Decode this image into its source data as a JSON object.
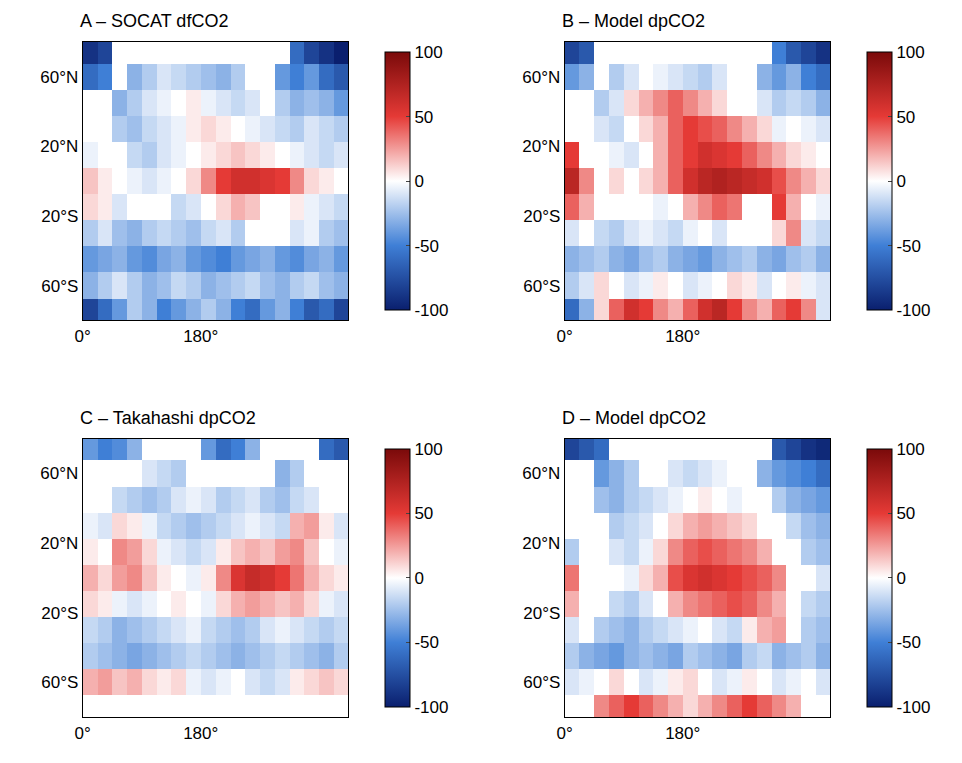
{
  "chart_data": [
    {
      "type": "heatmap",
      "title": "A – SOCAT dfCO2",
      "grid": false,
      "x": [
        11.25,
        33.75,
        56.25,
        78.75,
        101.25,
        123.75,
        146.25,
        168.75,
        191.25,
        213.75,
        236.25,
        258.75,
        281.25,
        303.75,
        326.25,
        348.75,
        371.25,
        393.75
      ],
      "y": [
        -75,
        -60,
        -45,
        -30,
        -15,
        0,
        15,
        30,
        45,
        60,
        75
      ],
      "xlim": [
        0,
        405
      ],
      "ylim": [
        -80,
        80
      ],
      "xticks": [
        {
          "value": 0,
          "label": "0°"
        },
        {
          "value": 180,
          "label": "180°"
        }
      ],
      "yticks": [
        {
          "value": -60,
          "label": "60°S"
        },
        {
          "value": -20,
          "label": "20°S"
        },
        {
          "value": 20,
          "label": "20°N"
        },
        {
          "value": 60,
          "label": "60°N"
        }
      ],
      "colorbar": {
        "range": [
          -100,
          100
        ],
        "ticks": [
          -100,
          -50,
          0,
          50,
          100
        ]
      },
      "z": [
        [
          -80,
          -60,
          -40,
          -20,
          -30,
          -50,
          -40,
          -30,
          -20,
          -30,
          -50,
          -60,
          -40,
          -30,
          -50,
          -70,
          -60,
          -80
        ],
        [
          -30,
          -20,
          -10,
          -20,
          -30,
          -25,
          -15,
          -20,
          -30,
          -25,
          -20,
          -15,
          -25,
          -30,
          -20,
          -15,
          -25,
          -30
        ],
        [
          -40,
          -35,
          -30,
          -40,
          -45,
          -35,
          -30,
          -40,
          -45,
          -50,
          -40,
          -35,
          -30,
          -40,
          -45,
          -35,
          -30,
          -40
        ],
        [
          -20,
          -10,
          -25,
          -30,
          -20,
          -15,
          -20,
          -25,
          -15,
          -10,
          -20,
          null,
          null,
          null,
          -10,
          -5,
          -20,
          -25
        ],
        [
          10,
          5,
          -10,
          null,
          null,
          null,
          -15,
          -10,
          0,
          10,
          20,
          15,
          null,
          null,
          5,
          -5,
          -10,
          -15
        ],
        [
          15,
          5,
          null,
          -5,
          -10,
          -5,
          0,
          10,
          30,
          50,
          60,
          60,
          55,
          50,
          30,
          10,
          5,
          0
        ],
        [
          -5,
          null,
          null,
          -15,
          -20,
          -10,
          -5,
          0,
          5,
          10,
          15,
          10,
          5,
          0,
          -5,
          -10,
          -15,
          -10
        ],
        [
          null,
          null,
          -20,
          -25,
          -15,
          -10,
          -5,
          5,
          10,
          5,
          0,
          -5,
          -10,
          -15,
          -20,
          -10,
          -15,
          -20
        ],
        [
          null,
          null,
          -30,
          -20,
          -10,
          -5,
          0,
          5,
          -5,
          -10,
          -15,
          -10,
          null,
          -20,
          -30,
          -25,
          -30,
          -40
        ],
        [
          -60,
          -50,
          null,
          -30,
          -20,
          -10,
          -15,
          -20,
          -25,
          -30,
          -20,
          null,
          null,
          -40,
          -50,
          -40,
          -60,
          -70
        ],
        [
          -90,
          -80,
          null,
          null,
          null,
          null,
          null,
          null,
          null,
          null,
          null,
          null,
          null,
          null,
          -60,
          -80,
          -90,
          -100
        ]
      ]
    },
    {
      "type": "heatmap",
      "title": "B – Model dpCO2",
      "grid": false,
      "x": [
        11.25,
        33.75,
        56.25,
        78.75,
        101.25,
        123.75,
        146.25,
        168.75,
        191.25,
        213.75,
        236.25,
        258.75,
        281.25,
        303.75,
        326.25,
        348.75,
        371.25,
        393.75
      ],
      "y": [
        -75,
        -60,
        -45,
        -30,
        -15,
        0,
        15,
        30,
        45,
        60,
        75
      ],
      "xlim": [
        0,
        405
      ],
      "ylim": [
        -80,
        80
      ],
      "xticks": [
        {
          "value": 0,
          "label": "0°"
        },
        {
          "value": 180,
          "label": "180°"
        }
      ],
      "yticks": [
        {
          "value": -60,
          "label": "60°S"
        },
        {
          "value": -20,
          "label": "20°S"
        },
        {
          "value": 20,
          "label": "20°N"
        },
        {
          "value": 60,
          "label": "60°N"
        }
      ],
      "colorbar": {
        "range": [
          -100,
          100
        ],
        "ticks": [
          -100,
          -50,
          0,
          50,
          100
        ]
      },
      "z": [
        [
          -60,
          -30,
          10,
          40,
          60,
          50,
          30,
          20,
          40,
          60,
          70,
          50,
          30,
          20,
          40,
          50,
          30,
          -10
        ],
        [
          -20,
          -10,
          10,
          0,
          -10,
          -5,
          5,
          0,
          -10,
          -5,
          0,
          10,
          5,
          -10,
          0,
          5,
          -5,
          -10
        ],
        [
          -30,
          -25,
          -20,
          -30,
          -35,
          -25,
          -20,
          -30,
          -35,
          -40,
          -30,
          -25,
          -20,
          -30,
          -35,
          -25,
          -20,
          -30
        ],
        [
          -10,
          0,
          -15,
          -20,
          -10,
          -5,
          -10,
          -15,
          -5,
          0,
          -10,
          null,
          null,
          null,
          10,
          30,
          -10,
          -15
        ],
        [
          40,
          20,
          0,
          null,
          null,
          null,
          -5,
          0,
          20,
          30,
          40,
          35,
          null,
          null,
          50,
          20,
          0,
          -5
        ],
        [
          70,
          30,
          null,
          10,
          0,
          10,
          20,
          40,
          60,
          70,
          75,
          70,
          65,
          60,
          45,
          30,
          20,
          10
        ],
        [
          50,
          null,
          null,
          -5,
          -10,
          0,
          20,
          40,
          50,
          60,
          55,
          50,
          40,
          30,
          20,
          10,
          5,
          0
        ],
        [
          null,
          null,
          -10,
          -15,
          0,
          10,
          20,
          40,
          50,
          45,
          40,
          30,
          20,
          10,
          -5,
          0,
          -5,
          -10
        ],
        [
          null,
          null,
          -20,
          -10,
          10,
          20,
          30,
          40,
          30,
          20,
          10,
          0,
          null,
          -10,
          -20,
          -15,
          -20,
          -30
        ],
        [
          -40,
          -30,
          null,
          -20,
          -10,
          0,
          -5,
          -10,
          -15,
          -20,
          -10,
          null,
          null,
          -30,
          -40,
          -30,
          -50,
          -60
        ],
        [
          -80,
          -70,
          null,
          null,
          null,
          null,
          null,
          null,
          null,
          null,
          null,
          null,
          null,
          null,
          -50,
          -70,
          -80,
          -90
        ]
      ]
    },
    {
      "type": "heatmap",
      "title": "C – Takahashi dpCO2",
      "grid": false,
      "x": [
        11.25,
        33.75,
        56.25,
        78.75,
        101.25,
        123.75,
        146.25,
        168.75,
        191.25,
        213.75,
        236.25,
        258.75,
        281.25,
        303.75,
        326.25,
        348.75,
        371.25,
        393.75
      ],
      "y": [
        -75,
        -60,
        -45,
        -30,
        -15,
        0,
        15,
        30,
        45,
        60,
        75
      ],
      "xlim": [
        0,
        405
      ],
      "ylim": [
        -80,
        80
      ],
      "xticks": [
        {
          "value": 0,
          "label": "0°"
        },
        {
          "value": 180,
          "label": "180°"
        }
      ],
      "yticks": [
        {
          "value": -60,
          "label": "60°S"
        },
        {
          "value": -20,
          "label": "20°S"
        },
        {
          "value": 20,
          "label": "20°N"
        },
        {
          "value": 60,
          "label": "60°N"
        }
      ],
      "colorbar": {
        "range": [
          -100,
          100
        ],
        "ticks": [
          -100,
          -50,
          0,
          50,
          100
        ]
      },
      "z": [
        [
          null,
          null,
          null,
          null,
          null,
          null,
          null,
          null,
          null,
          null,
          null,
          null,
          null,
          null,
          null,
          null,
          null,
          null
        ],
        [
          20,
          25,
          15,
          20,
          10,
          5,
          10,
          -5,
          -10,
          -5,
          0,
          -10,
          -15,
          -10,
          5,
          10,
          15,
          10
        ],
        [
          -20,
          -25,
          -30,
          -35,
          -30,
          -25,
          -20,
          -15,
          -20,
          -25,
          -30,
          -25,
          -20,
          -15,
          -20,
          -25,
          -30,
          -20
        ],
        [
          -15,
          -20,
          -30,
          -25,
          -20,
          -15,
          -10,
          -5,
          -15,
          -20,
          -25,
          -20,
          -10,
          -5,
          -10,
          -15,
          -20,
          -15
        ],
        [
          10,
          5,
          -5,
          -10,
          -5,
          0,
          5,
          0,
          -5,
          10,
          20,
          25,
          20,
          15,
          20,
          10,
          -5,
          -10
        ],
        [
          20,
          10,
          25,
          30,
          15,
          5,
          0,
          -5,
          5,
          30,
          55,
          65,
          60,
          50,
          35,
          20,
          10,
          5
        ],
        [
          5,
          0,
          30,
          25,
          10,
          -5,
          -10,
          -15,
          -10,
          5,
          15,
          20,
          15,
          25,
          30,
          15,
          0,
          -5
        ],
        [
          -5,
          -10,
          10,
          5,
          -5,
          -15,
          -20,
          -25,
          -20,
          -15,
          -10,
          -5,
          -10,
          -15,
          20,
          25,
          5,
          -10
        ],
        [
          null,
          null,
          -15,
          -20,
          -25,
          -20,
          -10,
          -5,
          -10,
          -20,
          -15,
          -10,
          -20,
          -25,
          -15,
          -10,
          null,
          null
        ],
        [
          null,
          null,
          null,
          null,
          -10,
          -15,
          -20,
          null,
          null,
          null,
          null,
          null,
          null,
          -30,
          -20,
          null,
          null,
          null
        ],
        [
          -40,
          -50,
          -45,
          -30,
          null,
          null,
          null,
          null,
          -40,
          -60,
          -50,
          -30,
          null,
          null,
          null,
          null,
          -60,
          -70
        ]
      ]
    },
    {
      "type": "heatmap",
      "title": "D – Model dpCO2",
      "grid": false,
      "x": [
        11.25,
        33.75,
        56.25,
        78.75,
        101.25,
        123.75,
        146.25,
        168.75,
        191.25,
        213.75,
        236.25,
        258.75,
        281.25,
        303.75,
        326.25,
        348.75,
        371.25,
        393.75
      ],
      "y": [
        -75,
        -60,
        -45,
        -30,
        -15,
        0,
        15,
        30,
        45,
        60,
        75
      ],
      "xlim": [
        0,
        405
      ],
      "ylim": [
        -80,
        80
      ],
      "xticks": [
        {
          "value": 0,
          "label": "0°"
        },
        {
          "value": 180,
          "label": "180°"
        }
      ],
      "yticks": [
        {
          "value": -60,
          "label": "60°S"
        },
        {
          "value": -20,
          "label": "20°S"
        },
        {
          "value": 20,
          "label": "20°N"
        },
        {
          "value": 60,
          "label": "60°N"
        }
      ],
      "colorbar": {
        "range": [
          -100,
          100
        ],
        "ticks": [
          -100,
          -50,
          0,
          50,
          100
        ]
      },
      "z": [
        [
          null,
          null,
          30,
          40,
          50,
          40,
          30,
          20,
          10,
          20,
          30,
          40,
          50,
          40,
          30,
          20,
          null,
          null
        ],
        [
          -10,
          -5,
          0,
          10,
          0,
          -10,
          -5,
          5,
          10,
          0,
          -10,
          -5,
          5,
          0,
          -10,
          -5,
          0,
          -10
        ],
        [
          -20,
          -30,
          -35,
          -40,
          -30,
          -25,
          -30,
          -35,
          -20,
          -25,
          -30,
          -35,
          -20,
          -15,
          -30,
          -25,
          -20,
          -30
        ],
        [
          -10,
          null,
          -20,
          -25,
          -30,
          -20,
          -15,
          -10,
          -5,
          0,
          -10,
          -15,
          5,
          20,
          25,
          null,
          -20,
          -25
        ],
        [
          20,
          null,
          null,
          -15,
          -20,
          -10,
          0,
          20,
          30,
          35,
          40,
          45,
          40,
          30,
          20,
          null,
          -15,
          -20
        ],
        [
          35,
          null,
          null,
          null,
          -5,
          10,
          20,
          45,
          55,
          60,
          55,
          50,
          45,
          40,
          30,
          null,
          null,
          -10
        ],
        [
          -20,
          null,
          null,
          -10,
          -15,
          -5,
          10,
          30,
          40,
          45,
          40,
          35,
          30,
          20,
          null,
          null,
          -20,
          -25
        ],
        [
          null,
          null,
          null,
          -20,
          -15,
          -10,
          0,
          10,
          20,
          25,
          20,
          15,
          10,
          null,
          null,
          -15,
          -25,
          -30
        ],
        [
          null,
          null,
          -25,
          -30,
          -20,
          -15,
          -10,
          -5,
          0,
          5,
          0,
          -5,
          null,
          null,
          -20,
          -30,
          -35,
          -40
        ],
        [
          null,
          null,
          -40,
          -30,
          -20,
          null,
          null,
          -10,
          -15,
          -10,
          -5,
          null,
          null,
          -30,
          -40,
          -45,
          -50,
          -60
        ],
        [
          -80,
          -70,
          -60,
          null,
          null,
          null,
          null,
          null,
          null,
          null,
          null,
          null,
          null,
          null,
          -70,
          -80,
          -90,
          -95
        ]
      ]
    }
  ]
}
